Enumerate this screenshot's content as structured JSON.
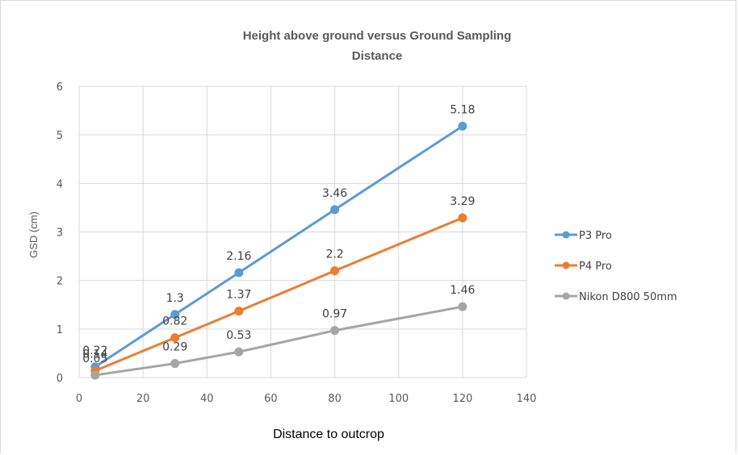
{
  "chart_data": {
    "type": "line",
    "title_lines": [
      "Height above ground versus Ground Sampling",
      "Distance"
    ],
    "xlabel": "Distance to outcrop",
    "ylabel": "GSD (cm)",
    "xlim": [
      0,
      140
    ],
    "ylim": [
      0,
      6
    ],
    "x_ticks": [
      0,
      20,
      40,
      60,
      80,
      100,
      120,
      140
    ],
    "y_ticks": [
      0,
      1,
      2,
      3,
      4,
      5,
      6
    ],
    "grid": true,
    "legend_position": "right",
    "x": [
      5,
      30,
      50,
      80,
      120
    ],
    "series": [
      {
        "name": "P3 Pro",
        "color": "#5b9bd5",
        "values": [
          0.22,
          1.3,
          2.16,
          3.46,
          5.18
        ],
        "labels": [
          "0.22",
          "1.3",
          "2.16",
          "3.46",
          "5.18"
        ]
      },
      {
        "name": "P4 Pro",
        "color": "#ed7d31",
        "values": [
          0.14,
          0.82,
          1.37,
          2.2,
          3.29
        ],
        "labels": [
          "0.14",
          "0.82",
          "1.37",
          "2.2",
          "3.29"
        ]
      },
      {
        "name": "Nikon D800 50mm",
        "color": "#a5a5a5",
        "values": [
          0.05,
          0.29,
          0.53,
          0.97,
          1.46
        ],
        "labels": [
          "0.05",
          "0.29",
          "0.53",
          "0.97",
          "1.46"
        ]
      }
    ]
  }
}
